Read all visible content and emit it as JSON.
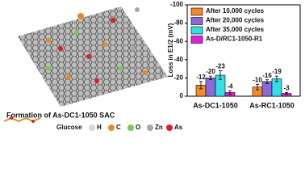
{
  "chart_data": {
    "type": "bar",
    "y_label": "Loss in E1/2 (mV)",
    "categories": [
      "As-DC1-1050",
      "As-RC1-1050"
    ],
    "series": [
      {
        "name": "After 10,000 cycles",
        "color": "#f5892a",
        "values": [
          -12,
          -10
        ],
        "errors": [
          4,
          3
        ]
      },
      {
        "name": "After 20,000 cycles",
        "color": "#8a6ad8",
        "values": [
          -20,
          -16
        ],
        "errors": [
          2,
          2
        ]
      },
      {
        "name": "After 35,000 cycles",
        "color": "#2fe0e6",
        "values": [
          -23,
          -19
        ],
        "errors": [
          5,
          3
        ]
      },
      {
        "name": "As-D/RC1-1050-R1",
        "color": "#e020d8",
        "values": [
          -4,
          -3
        ],
        "errors": [
          2,
          1
        ]
      }
    ],
    "ylim": [
      0,
      -100
    ],
    "yticks": [
      0,
      -20,
      -40,
      -60,
      -80,
      -100
    ],
    "legend": "upper-left"
  },
  "illustration": {
    "caption": "Formation of As-DC1-1050 SAC",
    "legend": [
      {
        "label": "Glucose"
      },
      {
        "label": "H",
        "color": "#d8d8d8"
      },
      {
        "label": "C",
        "color": "#e58a2a"
      },
      {
        "label": "O",
        "color": "#7fc65a"
      },
      {
        "label": "Zn",
        "color": "#a0a8b8"
      },
      {
        "label": "As",
        "color": "#e02020"
      }
    ]
  }
}
